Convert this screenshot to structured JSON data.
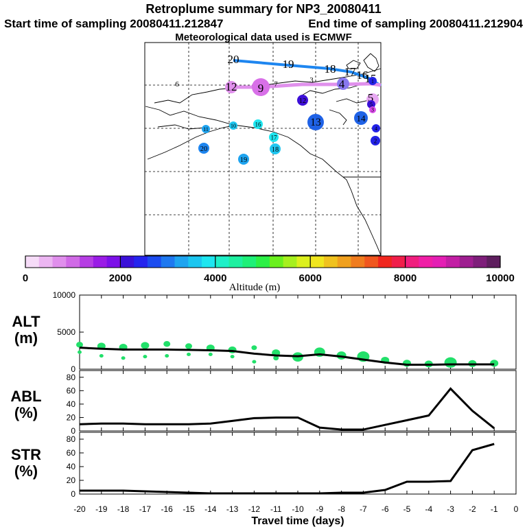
{
  "header": {
    "title": "Retroplume summary for NP3_20080411",
    "start": "Start time of sampling 20080411.212847",
    "end": "End time of sampling 20080411.212904",
    "met": "Meteorological data used is ECMWF"
  },
  "colorbar": {
    "ticks": [
      "0",
      "2000",
      "4000",
      "6000",
      "8000",
      "10000"
    ],
    "label": "Altitude (m)",
    "colors": [
      "#f6dcf8",
      "#ecb6f2",
      "#e08fec",
      "#d06ae6",
      "#b63ee4",
      "#9a1ce6",
      "#7c10e8",
      "#3a10d8",
      "#2424ee",
      "#1c4cf0",
      "#1e78f0",
      "#1ea4f0",
      "#1cc6f0",
      "#1ee6f0",
      "#1ef0c8",
      "#1ef0a0",
      "#1ef078",
      "#2cf046",
      "#6af01e",
      "#a6f01e",
      "#dcf01e",
      "#f0e61e",
      "#f0c21e",
      "#f0a01e",
      "#f07c1e",
      "#f0561e",
      "#f0261e",
      "#f01e4a",
      "#f01e7e",
      "#f01ea6",
      "#e41eb4",
      "#c21ea4",
      "#9e1e90",
      "#7e1e7a",
      "#5e1e5e"
    ]
  },
  "map": {
    "plume_labels": [
      {
        "t": "20",
        "size": "large"
      },
      {
        "t": "19",
        "size": "large"
      },
      {
        "t": "18",
        "size": "large"
      },
      {
        "t": "17",
        "size": "large"
      },
      {
        "t": "16",
        "size": "large"
      },
      {
        "t": "15",
        "size": "large"
      },
      {
        "t": "12",
        "size": "large"
      },
      {
        "t": "9",
        "size": "large"
      },
      {
        "t": "7",
        "size": "small"
      },
      {
        "t": "6",
        "size": "small"
      },
      {
        "t": "3",
        "size": "small"
      },
      {
        "t": "4",
        "size": "large"
      },
      {
        "t": "5",
        "size": "large"
      }
    ],
    "centroids": [
      {
        "t": "13",
        "color": "#1f62e6",
        "r": 12
      },
      {
        "t": "14",
        "color": "#1f62e6",
        "r": 10
      },
      {
        "t": "12",
        "color": "#3d0fd8",
        "r": 8
      },
      {
        "t": "11",
        "color": "#1ea4f0",
        "r": 6
      },
      {
        "t": "10",
        "color": "#1ec6f0",
        "r": 6
      },
      {
        "t": "16",
        "color": "#1ee6f0",
        "r": 7
      },
      {
        "t": "17",
        "color": "#1ee6f0",
        "r": 7
      },
      {
        "t": "18",
        "color": "#1ec6f0",
        "r": 8
      },
      {
        "t": "19",
        "color": "#1ea4f0",
        "r": 8
      },
      {
        "t": "20",
        "color": "#1e86f0",
        "r": 8
      },
      {
        "t": "5",
        "color": "#3a10d8",
        "r": 6
      },
      {
        "t": "4",
        "color": "#2222e6",
        "r": 6
      },
      {
        "t": "2",
        "color": "#2222e6",
        "r": 7
      },
      {
        "t": "1",
        "color": "#2222e6",
        "r": 6
      },
      {
        "t": "3",
        "color": "#d84ae8",
        "r": 5
      }
    ]
  },
  "panels": {
    "alt": {
      "line1": "ALT",
      "line2": "(m)",
      "yticks": [
        "0",
        "5000",
        "10000"
      ]
    },
    "abl": {
      "line1": "ABL",
      "line2": "(%)",
      "yticks": [
        "0",
        "20",
        "40",
        "60",
        "80"
      ]
    },
    "str": {
      "line1": "STR",
      "line2": "(%)",
      "yticks": [
        "0",
        "20",
        "40",
        "60",
        "80"
      ]
    }
  },
  "chart_data": {
    "type": "line",
    "xlabel": "Travel time (days)",
    "xlim": [
      -20,
      0
    ],
    "x_ticks": [
      "-20",
      "-19",
      "-18",
      "-17",
      "-16",
      "-15",
      "-14",
      "-13",
      "-12",
      "-11",
      "-10",
      "-9",
      "-8",
      "-7",
      "-6",
      "-5",
      "-4",
      "-3",
      "-2",
      "-1",
      "0"
    ],
    "x": [
      -20,
      -19,
      -18,
      -17,
      -16,
      -15,
      -14,
      -13,
      -12,
      -11,
      -10,
      -9,
      -8,
      -7,
      -6,
      -5,
      -4,
      -3,
      -2,
      -1
    ],
    "series": [
      {
        "name": "ALT",
        "ylabel": "ALT (m)",
        "ylim": [
          0,
          10000
        ],
        "values": [
          2900,
          2750,
          2650,
          2650,
          2650,
          2600,
          2550,
          2450,
          2100,
          1850,
          1750,
          2000,
          1700,
          1300,
          900,
          600,
          600,
          650,
          650,
          650
        ]
      },
      {
        "name": "ABL",
        "ylabel": "ABL (%)",
        "ylim": [
          0,
          90
        ],
        "values": [
          10,
          11,
          11,
          10,
          10,
          10,
          11,
          15,
          19,
          20,
          20,
          5,
          2,
          2,
          9,
          16,
          23,
          63,
          30,
          4
        ]
      },
      {
        "name": "STR",
        "ylabel": "STR (%)",
        "ylim": [
          0,
          90
        ],
        "values": [
          5,
          5,
          5,
          4,
          3,
          2,
          1,
          1,
          1,
          1,
          1,
          1,
          2,
          2,
          6,
          18,
          18,
          19,
          64,
          73
        ]
      }
    ],
    "alt_scatter": [
      {
        "x": -20,
        "y": 3300,
        "r": 5
      },
      {
        "x": -20,
        "y": 2300,
        "r": 3
      },
      {
        "x": -19,
        "y": 3100,
        "r": 6
      },
      {
        "x": -19,
        "y": 1800,
        "r": 3
      },
      {
        "x": -18,
        "y": 2950,
        "r": 6
      },
      {
        "x": -18,
        "y": 1500,
        "r": 3
      },
      {
        "x": -17,
        "y": 3200,
        "r": 6
      },
      {
        "x": -17,
        "y": 1700,
        "r": 3
      },
      {
        "x": -16,
        "y": 3400,
        "r": 5
      },
      {
        "x": -16,
        "y": 1800,
        "r": 3
      },
      {
        "x": -15,
        "y": 3100,
        "r": 5
      },
      {
        "x": -15,
        "y": 2000,
        "r": 3
      },
      {
        "x": -14,
        "y": 2850,
        "r": 6
      },
      {
        "x": -14,
        "y": 2000,
        "r": 3
      },
      {
        "x": -13,
        "y": 2600,
        "r": 6
      },
      {
        "x": -13,
        "y": 1700,
        "r": 3
      },
      {
        "x": -12,
        "y": 2900,
        "r": 4
      },
      {
        "x": -12,
        "y": 1000,
        "r": 3
      },
      {
        "x": -11,
        "y": 2200,
        "r": 6
      },
      {
        "x": -11,
        "y": 1500,
        "r": 4
      },
      {
        "x": -10,
        "y": 1650,
        "r": 8
      },
      {
        "x": -9,
        "y": 2300,
        "r": 8
      },
      {
        "x": -8,
        "y": 1850,
        "r": 7
      },
      {
        "x": -7,
        "y": 1700,
        "r": 9
      },
      {
        "x": -6,
        "y": 1200,
        "r": 6
      },
      {
        "x": -5,
        "y": 800,
        "r": 6
      },
      {
        "x": -4,
        "y": 700,
        "r": 6
      },
      {
        "x": -3,
        "y": 900,
        "r": 9
      },
      {
        "x": -2,
        "y": 750,
        "r": 6
      },
      {
        "x": -1,
        "y": 800,
        "r": 6
      }
    ]
  }
}
